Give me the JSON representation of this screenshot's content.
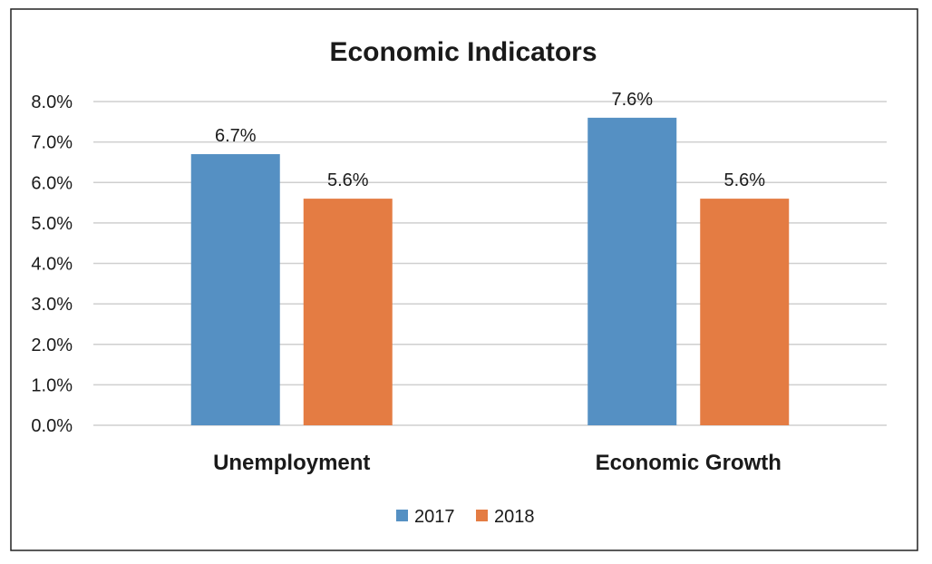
{
  "chart_data": {
    "type": "bar",
    "title": "Economic Indicators",
    "categories": [
      "Unemployment",
      "Economic Growth"
    ],
    "series": [
      {
        "name": "2017",
        "values": [
          6.7,
          7.6
        ],
        "color": "#5590c3",
        "labels": [
          "6.7%",
          "7.6%"
        ]
      },
      {
        "name": "2018",
        "values": [
          5.6,
          5.6
        ],
        "color": "#e47c43",
        "labels": [
          "5.6%",
          "5.6%"
        ]
      }
    ],
    "yticks": [
      "0.0%",
      "1.0%",
      "2.0%",
      "3.0%",
      "4.0%",
      "5.0%",
      "6.0%",
      "7.0%",
      "8.0%"
    ],
    "ylim": [
      0,
      8
    ],
    "xlabel": "",
    "ylabel": "",
    "grid": true,
    "legend": "bottom"
  }
}
